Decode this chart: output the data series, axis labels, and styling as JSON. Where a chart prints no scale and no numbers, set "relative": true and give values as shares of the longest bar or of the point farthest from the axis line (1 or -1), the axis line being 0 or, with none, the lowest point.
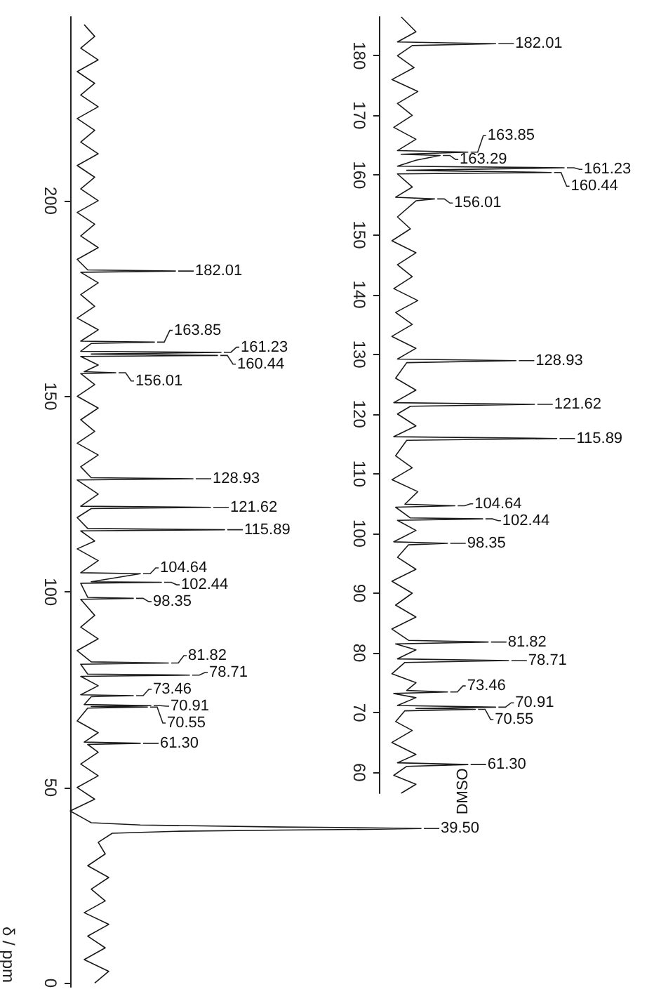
{
  "chart_data": [
    {
      "type": "line",
      "orientation": "horizontal",
      "relative": true,
      "ylabel": "δ / ppm",
      "color": "#1a1a1a",
      "ylim": [
        -1,
        247
      ],
      "yticks": [
        0,
        50,
        100,
        150,
        200
      ],
      "grid": false,
      "x": [
        0,
        3,
        6,
        9,
        12,
        15,
        18,
        21,
        24,
        27,
        30,
        33,
        36,
        38.3,
        38.8,
        39.1,
        39.3,
        39.5,
        39.7,
        39.9,
        40.4,
        41,
        42,
        44,
        47,
        50,
        53,
        56,
        59,
        61,
        61.3,
        61.6,
        64,
        67,
        70.3,
        70.55,
        70.7,
        70.91,
        71.2,
        73.2,
        73.46,
        73.7,
        76,
        78.4,
        78.71,
        79,
        81.5,
        81.82,
        82.1,
        85,
        88,
        91,
        94,
        98.1,
        98.35,
        98.6,
        102.2,
        102.44,
        102.6,
        104.64,
        104.9,
        108,
        111,
        113,
        115.6,
        115.89,
        116.2,
        119,
        121.3,
        121.62,
        121.9,
        125,
        128.6,
        128.93,
        129.2,
        132,
        135,
        138,
        141,
        144,
        147,
        150,
        153,
        155.8,
        156.01,
        156.3,
        158,
        160.2,
        160.44,
        160.8,
        161.23,
        161.5,
        163.5,
        163.85,
        164.1,
        167,
        170,
        173,
        176,
        179,
        181.7,
        182.01,
        182.3,
        185,
        188,
        191,
        194,
        197,
        200,
        203,
        206,
        209,
        212,
        215,
        218,
        221,
        224,
        227,
        230,
        233,
        236,
        239,
        242,
        245
      ],
      "values": [
        0.07,
        0.11,
        0.04,
        0.1,
        0.05,
        0.11,
        0.04,
        0.1,
        0.06,
        0.11,
        0.05,
        0.1,
        0.08,
        0.12,
        0.3,
        0.6,
        0.85,
        1,
        0.85,
        0.6,
        0.2,
        0.06,
        0.04,
        0.0,
        0.07,
        0.02,
        0.08,
        0.03,
        0.08,
        0.05,
        0.2,
        0.04,
        0.08,
        0.02,
        0.05,
        0.22,
        0.06,
        0.23,
        0.04,
        0.06,
        0.18,
        0.03,
        0.08,
        0.03,
        0.34,
        0.05,
        0.03,
        0.28,
        0.06,
        0.02,
        0.08,
        0.03,
        0.07,
        0.03,
        0.18,
        0.05,
        0.03,
        0.26,
        0.06,
        0.2,
        0.03,
        0.08,
        0.02,
        0.07,
        0.03,
        0.44,
        0.05,
        0.02,
        0.06,
        0.4,
        0.03,
        0.08,
        0.02,
        0.35,
        0.06,
        0.03,
        0.08,
        0.02,
        0.07,
        0.03,
        0.08,
        0.02,
        0.07,
        0.03,
        0.13,
        0.04,
        0.08,
        0.03,
        0.42,
        0.06,
        0.43,
        0.03,
        0.06,
        0.24,
        0.03,
        0.08,
        0.02,
        0.07,
        0.03,
        0.08,
        0.03,
        0.3,
        0.05,
        0.02,
        0.08,
        0.03,
        0.07,
        0.02,
        0.08,
        0.03,
        0.07,
        0.02,
        0.08,
        0.03,
        0.07,
        0.02,
        0.08,
        0.03,
        0.07,
        0.02,
        0.08,
        0.03,
        0.07,
        0.04
      ],
      "annotations": [
        {
          "text": "182.01",
          "x": 0.3,
          "y": 182.01
        },
        {
          "text": "163.85",
          "x": 0.24,
          "y": 163.85
        },
        {
          "text": "161.23",
          "x": 0.43,
          "y": 161.23
        },
        {
          "text": "160.44",
          "x": 0.42,
          "y": 160.44
        },
        {
          "text": "156.01",
          "x": 0.13,
          "y": 156.01
        },
        {
          "text": "128.93",
          "x": 0.35,
          "y": 128.93
        },
        {
          "text": "121.62",
          "x": 0.4,
          "y": 121.62
        },
        {
          "text": "115.89",
          "x": 0.44,
          "y": 115.89
        },
        {
          "text": "104.64",
          "x": 0.2,
          "y": 104.64
        },
        {
          "text": "102.44",
          "x": 0.26,
          "y": 102.44
        },
        {
          "text": "98.35",
          "x": 0.18,
          "y": 98.35
        },
        {
          "text": "81.82",
          "x": 0.28,
          "y": 81.82
        },
        {
          "text": "78.71",
          "x": 0.34,
          "y": 78.71
        },
        {
          "text": "73.46",
          "x": 0.18,
          "y": 73.46
        },
        {
          "text": "70.91",
          "x": 0.23,
          "y": 70.91
        },
        {
          "text": "70.55",
          "x": 0.22,
          "y": 70.55
        },
        {
          "text": "61.30",
          "x": 0.2,
          "y": 61.3
        },
        {
          "text": "39.50",
          "x": 1,
          "y": 39.5
        },
        "DMSO"
      ]
    },
    {
      "type": "line",
      "orientation": "horizontal",
      "relative": true,
      "color": "#1a1a1a",
      "ylim": [
        56.5,
        186.5
      ],
      "yticks": [
        60,
        70,
        80,
        90,
        100,
        110,
        120,
        130,
        140,
        150,
        160,
        170,
        180
      ],
      "grid": false,
      "x": [
        56.5,
        58,
        59.5,
        61,
        61.3,
        61.6,
        63,
        65,
        67,
        68.5,
        70.3,
        70.55,
        70.7,
        70.91,
        71.2,
        72.5,
        73.2,
        73.46,
        73.7,
        75,
        76.5,
        78.4,
        78.71,
        79,
        80.5,
        81.5,
        81.82,
        82.1,
        84,
        86,
        88,
        90,
        92,
        94,
        96,
        98.1,
        98.35,
        98.6,
        100.5,
        102.2,
        102.44,
        102.6,
        104.4,
        104.64,
        104.9,
        107,
        109,
        111,
        113,
        115.6,
        115.89,
        116.2,
        118,
        120,
        121.3,
        121.62,
        121.9,
        124,
        126,
        128.6,
        128.93,
        129.2,
        131,
        133,
        135,
        137,
        139,
        141,
        143,
        145,
        147,
        149,
        151,
        153,
        155.7,
        156.01,
        156.3,
        158,
        160.2,
        160.44,
        160.8,
        161.23,
        161.5,
        162.5,
        163.29,
        163.5,
        163.85,
        164.1,
        166,
        168,
        170,
        172,
        174,
        176,
        178,
        180,
        181.7,
        182.01,
        182.3,
        184,
        186.5
      ],
      "values": [
        0.12,
        0.2,
        0.08,
        0.15,
        0.48,
        0.1,
        0.2,
        0.07,
        0.18,
        0.09,
        0.14,
        0.52,
        0.2,
        0.63,
        0.1,
        0.2,
        0.08,
        0.37,
        0.15,
        0.2,
        0.07,
        0.14,
        0.7,
        0.1,
        0.2,
        0.09,
        0.59,
        0.16,
        0.07,
        0.2,
        0.09,
        0.18,
        0.07,
        0.2,
        0.1,
        0.16,
        0.37,
        0.08,
        0.2,
        0.1,
        0.56,
        0.17,
        0.09,
        0.41,
        0.14,
        0.21,
        0.07,
        0.18,
        0.09,
        0.15,
        0.96,
        0.08,
        0.2,
        0.1,
        0.17,
        0.84,
        0.08,
        0.2,
        0.09,
        0.15,
        0.74,
        0.1,
        0.2,
        0.07,
        0.18,
        0.09,
        0.21,
        0.08,
        0.18,
        0.1,
        0.2,
        0.07,
        0.17,
        0.1,
        0.2,
        0.3,
        0.09,
        0.18,
        0.1,
        0.93,
        0.15,
        1,
        0.1,
        0.2,
        0.33,
        0.12,
        0.48,
        0.1,
        0.2,
        0.08,
        0.18,
        0.1,
        0.21,
        0.07,
        0.19,
        0.1,
        0.18,
        0.63,
        0.1,
        0.2,
        0.12
      ],
      "annotations": [
        {
          "text": "182.01",
          "x": 0.63,
          "y": 182.01
        },
        {
          "text": "163.85",
          "x": 0.48,
          "y": 163.85
        },
        {
          "text": "163.29",
          "x": 0.33,
          "y": 163.29
        },
        {
          "text": "161.23",
          "x": 1,
          "y": 161.23
        },
        {
          "text": "160.44",
          "x": 0.93,
          "y": 160.44
        },
        {
          "text": "156.01",
          "x": 0.3,
          "y": 156.01
        },
        {
          "text": "128.93",
          "x": 0.74,
          "y": 128.93
        },
        {
          "text": "121.62",
          "x": 0.84,
          "y": 121.62
        },
        {
          "text": "115.89",
          "x": 0.96,
          "y": 115.89
        },
        {
          "text": "104.64",
          "x": 0.41,
          "y": 104.64
        },
        {
          "text": "102.44",
          "x": 0.56,
          "y": 102.44
        },
        {
          "text": "98.35",
          "x": 0.37,
          "y": 98.35
        },
        {
          "text": "81.82",
          "x": 0.59,
          "y": 81.82
        },
        {
          "text": "78.71",
          "x": 0.7,
          "y": 78.71
        },
        {
          "text": "73.46",
          "x": 0.37,
          "y": 73.46
        },
        {
          "text": "70.91",
          "x": 0.63,
          "y": 70.91
        },
        {
          "text": "70.55",
          "x": 0.52,
          "y": 70.55
        },
        {
          "text": "61.30",
          "x": 0.48,
          "y": 61.3
        }
      ]
    }
  ]
}
